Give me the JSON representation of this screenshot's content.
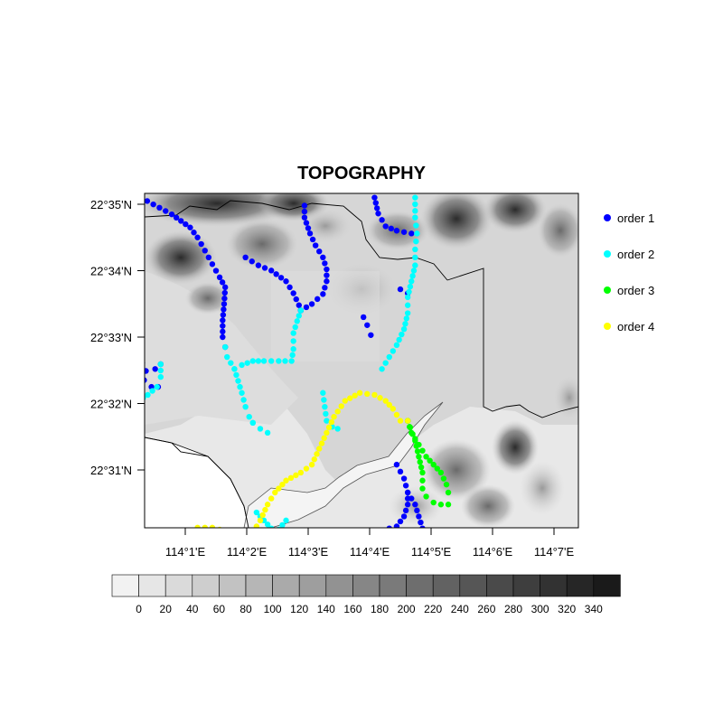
{
  "title": "TOPOGRAPHY",
  "lon_ticks": [
    "114°1'E",
    "114°2'E",
    "114°3'E",
    "114°4'E",
    "114°5'E",
    "114°6'E",
    "114°7'E"
  ],
  "lat_ticks": [
    "22°35'N",
    "22°34'N",
    "22°33'N",
    "22°32'N",
    "22°31'N"
  ],
  "legend": [
    {
      "label": "order 1",
      "color": "#0000ff"
    },
    {
      "label": "order 2",
      "color": "#00ffff"
    },
    {
      "label": "order 3",
      "color": "#00ff00"
    },
    {
      "label": "order 4",
      "color": "#ffff00"
    }
  ],
  "colorbar": {
    "labels": [
      "0",
      "20",
      "40",
      "60",
      "80",
      "100",
      "120",
      "140",
      "160",
      "180",
      "200",
      "220",
      "240",
      "260",
      "280",
      "300",
      "320",
      "340"
    ],
    "colors": [
      "#f2f2f2",
      "#e6e6e6",
      "#dadada",
      "#cecece",
      "#c2c2c2",
      "#b6b6b6",
      "#aaaaaa",
      "#9e9e9e",
      "#929292",
      "#868686",
      "#7a7a7a",
      "#6e6e6e",
      "#626262",
      "#565656",
      "#4a4a4a",
      "#3e3e3e",
      "#323232",
      "#262626",
      "#1a1a1a"
    ]
  },
  "chart_data": {
    "type": "map",
    "title": "TOPOGRAPHY",
    "variable": "terrain elevation",
    "contour_levels": [
      0,
      20,
      40,
      60,
      80,
      100,
      120,
      140,
      160,
      180,
      200,
      220,
      240,
      260,
      280,
      300,
      320,
      340
    ],
    "lon_range": [
      "114°0.4'E",
      "114°7.3'E"
    ],
    "lat_range": [
      "22°30.1'N",
      "22°35.2'N"
    ],
    "series": [
      {
        "name": "order 1",
        "color": "#0000ff",
        "lines": [
          [
            [
              114.0047,
              22.585
            ],
            [
              114.008,
              22.5833
            ],
            [
              114.013,
              22.5808
            ],
            [
              114.018,
              22.5775
            ],
            [
              114.02,
              22.575
            ],
            [
              114.022,
              22.5717
            ],
            [
              114.024,
              22.5683
            ],
            [
              114.026,
              22.565
            ],
            [
              114.0275,
              22.5625
            ],
            [
              114.0272,
              22.5583
            ],
            [
              114.0268,
              22.5542
            ],
            [
              114.0268,
              22.55
            ],
            [
              114.0275,
              22.5475
            ]
          ],
          [
            [
              114.0013,
              22.5525
            ],
            [
              114.0022,
              22.549
            ],
            [
              114.0025,
              22.5458
            ],
            [
              114.004,
              22.5442
            ]
          ],
          [
            [
              114.004,
              22.5472
            ],
            [
              114.005,
              22.5435
            ],
            [
              114.006,
              22.5415
            ],
            [
              114.0085,
              22.542
            ],
            [
              114.01,
              22.5432
            ]
          ],
          [
            [
              114.0055,
              22.5392
            ],
            [
              114.0075,
              22.5375
            ],
            [
              114.0093,
              22.5375
            ]
          ],
          [
            [
              114.033,
              22.57
            ],
            [
              114.0365,
              22.568
            ],
            [
              114.04,
              22.5667
            ],
            [
              114.044,
              22.564
            ],
            [
              114.046,
              22.561
            ],
            [
              114.0475,
              22.558
            ],
            [
              114.048,
              22.5567
            ]
          ],
          [
            [
              114.048,
              22.5567
            ],
            [
              114.051,
              22.5583
            ],
            [
              114.054,
              22.5608
            ],
            [
              114.055,
              22.564
            ],
            [
              114.055,
              22.567
            ],
            [
              114.054,
              22.57
            ],
            [
              114.052,
              22.573
            ],
            [
              114.0505,
              22.576
            ],
            [
              114.049,
              22.58
            ],
            [
              114.049,
              22.583
            ]
          ],
          [
            [
              114.068,
              22.585
            ],
            [
              114.069,
              22.581
            ],
            [
              114.071,
              22.5778
            ],
            [
              114.074,
              22.5767
            ],
            [
              114.078,
              22.576
            ]
          ],
          [
            [
              114.065,
              22.555
            ],
            [
              114.066,
              22.553
            ],
            [
              114.067,
              22.5505
            ]
          ],
          [
            [
              114.075,
              22.562
            ],
            [
              114.077,
              22.561
            ]
          ],
          [
            [
              114.074,
              22.518
            ],
            [
              114.076,
              22.5145
            ],
            [
              114.077,
              22.511
            ],
            [
              114.077,
              22.508
            ],
            [
              114.076,
              22.505
            ],
            [
              114.074,
              22.5025
            ],
            [
              114.072,
              22.502
            ]
          ],
          [
            [
              114.077,
              22.511
            ],
            [
              114.079,
              22.508
            ],
            [
              114.08,
              22.505
            ],
            [
              114.081,
              22.502
            ]
          ]
        ]
      },
      {
        "name": "order 2",
        "color": "#00ffff",
        "lines": [
          [
            [
              114.01,
              22.5432
            ],
            [
              114.01,
              22.54
            ],
            [
              114.009,
              22.5375
            ],
            [
              114.0065,
              22.5355
            ],
            [
              114.004,
              22.534
            ],
            [
              114.0035,
              22.531
            ],
            [
              114.002,
              22.5285
            ]
          ],
          [
            [
              114.0275,
              22.5475
            ],
            [
              114.028,
              22.545
            ],
            [
              114.03,
              22.542
            ],
            [
              114.031,
              22.539
            ],
            [
              114.032,
              22.536
            ],
            [
              114.033,
              22.5325
            ],
            [
              114.034,
              22.53
            ],
            [
              114.035,
              22.5285
            ]
          ],
          [
            [
              114.048,
              22.5567
            ],
            [
              114.047,
              22.554
            ],
            [
              114.046,
              22.551
            ],
            [
              114.046,
              22.547
            ],
            [
              114.0455,
              22.544
            ],
            [
              114.042,
              22.544
            ],
            [
              114.038,
              22.544
            ],
            [
              114.035,
              22.544
            ],
            [
              114.032,
              22.543
            ],
            [
              114.03,
              22.542
            ]
          ],
          [
            [
              114.035,
              22.5285
            ],
            [
              114.037,
              22.527
            ],
            [
              114.039,
              22.526
            ]
          ],
          [
            [
              114.054,
              22.536
            ],
            [
              114.0545,
              22.5325
            ],
            [
              114.055,
              22.529
            ],
            [
              114.0565,
              22.5275
            ],
            [
              114.058,
              22.527
            ]
          ],
          [
            [
              114.079,
              22.585
            ],
            [
              114.079,
              22.58
            ],
            [
              114.0795,
              22.576
            ],
            [
              114.079,
              22.572
            ],
            [
              114.079,
              22.568
            ],
            [
              114.078,
              22.564
            ],
            [
              114.077,
              22.56
            ],
            [
              114.077,
              22.556
            ],
            [
              114.076,
              22.552
            ],
            [
              114.074,
              22.548
            ],
            [
              114.072,
              22.545
            ],
            [
              114.07,
              22.542
            ]
          ],
          [
            [
              114.036,
              22.506
            ],
            [
              114.038,
              22.504
            ],
            [
              114.04,
              22.502
            ],
            [
              114.042,
              22.5017
            ]
          ],
          [
            [
              114.042,
              22.5017
            ],
            [
              114.044,
              22.504
            ]
          ]
        ]
      },
      {
        "name": "order 3",
        "color": "#00ff00",
        "lines": [
          [
            [
              114.077,
              22.529
            ],
            [
              114.078,
              22.526
            ],
            [
              114.08,
              22.523
            ],
            [
              114.082,
              22.52
            ],
            [
              114.084,
              22.518
            ],
            [
              114.086,
              22.516
            ],
            [
              114.0875,
              22.513
            ],
            [
              114.088,
              22.511
            ]
          ],
          [
            [
              114.077,
              22.529
            ],
            [
              114.079,
              22.524
            ],
            [
              114.08,
              22.52
            ],
            [
              114.081,
              22.516
            ],
            [
              114.081,
              22.512
            ],
            [
              114.082,
              22.51
            ],
            [
              114.084,
              22.5085
            ],
            [
              114.086,
              22.508
            ],
            [
              114.088,
              22.508
            ]
          ]
        ]
      },
      {
        "name": "order 4",
        "color": "#ffff00",
        "lines": [
          [
            [
              114.02,
              22.5022
            ],
            [
              114.024,
              22.5022
            ],
            [
              114.028,
              22.5012
            ],
            [
              114.032,
              22.5005
            ],
            [
              114.035,
              22.501
            ],
            [
              114.037,
              22.504
            ],
            [
              114.039,
              22.508
            ],
            [
              114.041,
              22.511
            ],
            [
              114.044,
              22.514
            ],
            [
              114.048,
              22.516
            ],
            [
              114.051,
              22.518
            ],
            [
              114.053,
              22.522
            ],
            [
              114.055,
              22.526
            ],
            [
              114.057,
              22.53
            ],
            [
              114.06,
              22.534
            ],
            [
              114.064,
              22.536
            ],
            [
              114.068,
              22.5355
            ],
            [
              114.071,
              22.534
            ],
            [
              114.073,
              22.532
            ],
            [
              114.075,
              22.529
            ],
            [
              114.077,
              22.529
            ]
          ]
        ]
      }
    ]
  }
}
